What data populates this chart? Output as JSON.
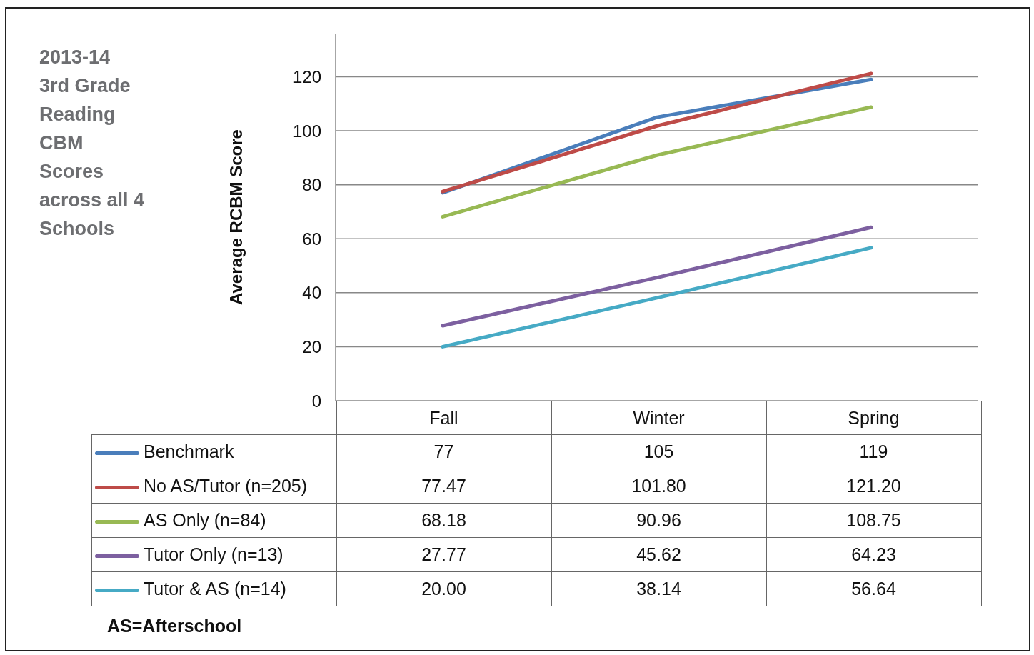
{
  "chart_data": {
    "type": "line",
    "title": "2013-14 3rd Grade Reading CBM Scores across all 4 Schools",
    "ylabel": "Average RCBM Score",
    "categories": [
      "Fall",
      "Winter",
      "Spring"
    ],
    "series": [
      {
        "name": "Benchmark",
        "color": "#4a7ebb",
        "values": [
          77,
          105,
          119
        ],
        "value_labels": [
          "77",
          "105",
          "119"
        ]
      },
      {
        "name": "No AS/Tutor (n=205)",
        "color": "#be4b48",
        "values": [
          77.47,
          101.8,
          121.2
        ],
        "value_labels": [
          "77.47",
          "101.80",
          "121.20"
        ]
      },
      {
        "name": "AS Only (n=84)",
        "color": "#98b954",
        "values": [
          68.18,
          90.96,
          108.75
        ],
        "value_labels": [
          "68.18",
          "90.96",
          "108.75"
        ]
      },
      {
        "name": "Tutor Only (n=13)",
        "color": "#7d60a0",
        "values": [
          27.77,
          45.62,
          64.23
        ],
        "value_labels": [
          "27.77",
          "45.62",
          "64.23"
        ]
      },
      {
        "name": "Tutor & AS (n=14)",
        "color": "#46aac5",
        "values": [
          20,
          38.14,
          56.64
        ],
        "value_labels": [
          "20.00",
          "38.14",
          "56.64"
        ]
      }
    ],
    "ylim": [
      0,
      136
    ],
    "yticks": [
      0,
      20,
      40,
      60,
      80,
      100,
      120
    ],
    "grid": "y",
    "legend": "bottom",
    "marker": "none",
    "line_style": "solid",
    "annotations": [
      "AS=Afterschool"
    ]
  }
}
